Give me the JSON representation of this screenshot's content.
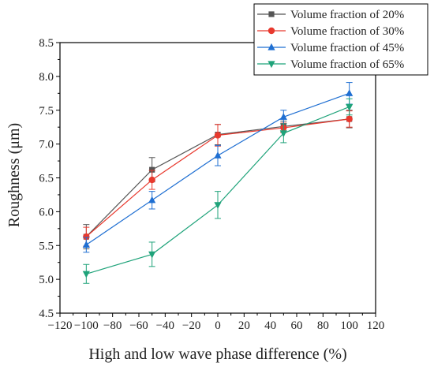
{
  "chart_data": {
    "type": "line",
    "title": "",
    "xlabel": "High and low wave phase difference (%)",
    "ylabel": "Roughness (μm)",
    "xlim": [
      -120,
      120
    ],
    "ylim": [
      4.5,
      8.5
    ],
    "xticks": [
      -120,
      -100,
      -80,
      -60,
      -40,
      -20,
      0,
      20,
      40,
      60,
      80,
      100,
      120
    ],
    "yticks": [
      4.5,
      5.0,
      5.5,
      6.0,
      6.5,
      7.0,
      7.5,
      8.0,
      8.5
    ],
    "x": [
      -100,
      -50,
      0,
      50,
      100
    ],
    "grid": false,
    "legend_position": "top-right",
    "series": [
      {
        "name": "Volume fraction of 20%",
        "color": "#555555",
        "marker": "square",
        "values": [
          5.63,
          6.62,
          7.14,
          7.26,
          7.37
        ],
        "errors": [
          0.18,
          0.18,
          0.15,
          0.08,
          0.13
        ]
      },
      {
        "name": "Volume fraction of 30%",
        "color": "#e8392e",
        "marker": "circle",
        "values": [
          5.63,
          6.47,
          7.13,
          7.24,
          7.37
        ],
        "errors": [
          0.14,
          0.14,
          0.16,
          0.07,
          0.12
        ]
      },
      {
        "name": "Volume fraction of 45%",
        "color": "#1f6fd2",
        "marker": "triangle-up",
        "values": [
          5.51,
          6.17,
          6.83,
          7.4,
          7.75
        ],
        "errors": [
          0.11,
          0.13,
          0.15,
          0.1,
          0.16
        ]
      },
      {
        "name": "Volume fraction of 65%",
        "color": "#1fa37a",
        "marker": "triangle-down",
        "values": [
          5.08,
          5.37,
          6.1,
          7.16,
          7.55
        ],
        "errors": [
          0.14,
          0.18,
          0.2,
          0.14,
          0.12
        ]
      }
    ]
  }
}
